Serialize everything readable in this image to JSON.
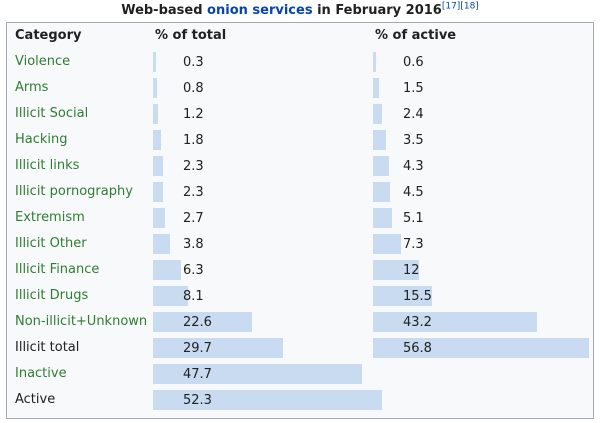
{
  "caption": {
    "prefix": "Web-based ",
    "link": "onion services",
    "suffix": " in February 2016",
    "ref1": "[17]",
    "ref2": "[18]"
  },
  "headers": {
    "category": "Category",
    "total": "% of total",
    "active": "% of active"
  },
  "colors": {
    "bar": "#c8dbf0",
    "link": "#2e7d32",
    "plain": "#202122"
  },
  "rows": [
    {
      "category": "Violence",
      "linked": true,
      "total": "0.3",
      "active": "0.6"
    },
    {
      "category": "Arms",
      "linked": true,
      "total": "0.8",
      "active": "1.5"
    },
    {
      "category": "Illicit Social",
      "linked": true,
      "total": "1.2",
      "active": "2.4"
    },
    {
      "category": "Hacking",
      "linked": true,
      "total": "1.8",
      "active": "3.5"
    },
    {
      "category": "Illicit links",
      "linked": true,
      "total": "2.3",
      "active": "4.3"
    },
    {
      "category": "Illicit pornography",
      "linked": true,
      "total": "2.3",
      "active": "4.5"
    },
    {
      "category": "Extremism",
      "linked": true,
      "total": "2.7",
      "active": "5.1"
    },
    {
      "category": "Illicit Other",
      "linked": true,
      "total": "3.8",
      "active": "7.3"
    },
    {
      "category": "Illicit Finance",
      "linked": true,
      "total": "6.3",
      "active": "12"
    },
    {
      "category": "Illicit Drugs",
      "linked": true,
      "total": "8.1",
      "active": "15.5"
    },
    {
      "category": "Non-illicit+Unknown",
      "linked": true,
      "total": "22.6",
      "active": "43.2"
    },
    {
      "category": "Illicit total",
      "linked": false,
      "total": "29.7",
      "active": "56.8"
    },
    {
      "category": "Inactive",
      "linked": true,
      "total": "47.7",
      "active": null
    },
    {
      "category": "Active",
      "linked": false,
      "total": "52.3",
      "active": null
    }
  ]
}
